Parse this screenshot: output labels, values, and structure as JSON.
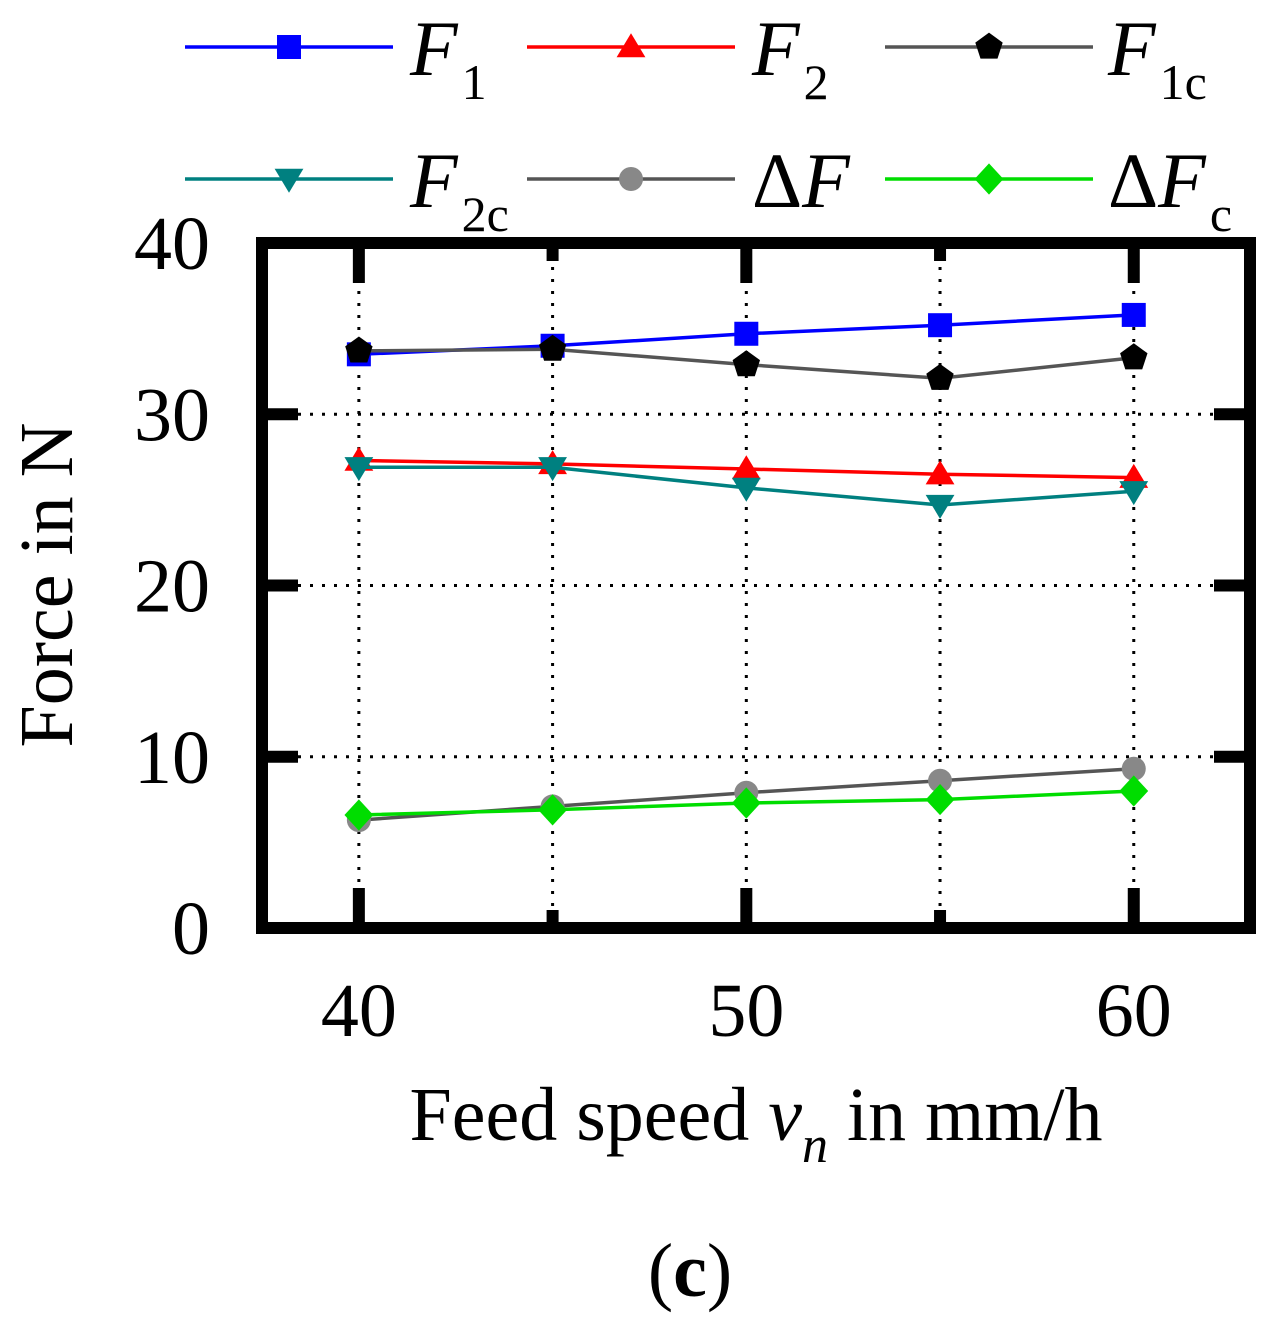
{
  "chart_data": {
    "type": "line",
    "title": "",
    "panel_label": {
      "open": "(",
      "letter": "c",
      "close": ")"
    },
    "xlabel": {
      "prefix": "Feed speed ",
      "var": "v",
      "sub": "n",
      "suffix": " in mm/h"
    },
    "ylabel": "Force in N",
    "x": [
      40,
      45,
      50,
      55,
      60
    ],
    "xlim": [
      37.5,
      63
    ],
    "ylim": [
      0,
      40
    ],
    "xticks": [
      "40",
      "50",
      "60"
    ],
    "xtick_values": [
      40,
      50,
      60
    ],
    "yticks": [
      "0",
      "10",
      "20",
      "30",
      "40"
    ],
    "ytick_values": [
      0,
      10,
      20,
      30,
      40
    ],
    "grid": true,
    "legend_position": "top",
    "series": [
      {
        "id": "F1",
        "name": "F1",
        "label": "F",
        "label_italic": true,
        "sub": "1",
        "color": "#0000ff",
        "marker": "square",
        "line_color": "#0000ff",
        "values": [
          33.5,
          34.0,
          34.7,
          35.2,
          35.8
        ]
      },
      {
        "id": "F2",
        "name": "F2",
        "label": "F",
        "label_italic": true,
        "sub": "2",
        "color": "#ff0000",
        "marker": "triangle-up",
        "line_color": "#ff0000",
        "values": [
          27.3,
          27.1,
          26.8,
          26.5,
          26.3
        ]
      },
      {
        "id": "F1c",
        "name": "F1c",
        "label": "F",
        "label_italic": true,
        "sub": "1c",
        "color": "#000000",
        "marker": "pentagon",
        "line_color": "#555555",
        "values": [
          33.7,
          33.8,
          32.9,
          32.1,
          33.3
        ]
      },
      {
        "id": "F2c",
        "name": "F2c",
        "label": "F",
        "label_italic": true,
        "sub": "2c",
        "color": "#008080",
        "marker": "triangle-down",
        "line_color": "#008080",
        "values": [
          26.9,
          26.9,
          25.7,
          24.7,
          25.5
        ]
      },
      {
        "id": "dF",
        "name": "ΔF",
        "label": "ΔF",
        "label_italic": true,
        "sub": "",
        "color": "#888888",
        "marker": "circle",
        "line_color": "#555555",
        "values": [
          6.3,
          7.1,
          7.9,
          8.6,
          9.3
        ]
      },
      {
        "id": "dFc",
        "name": "ΔFc",
        "label": "ΔF",
        "label_italic": true,
        "sub": "c",
        "color": "#00dd00",
        "marker": "diamond",
        "line_color": "#00dd00",
        "values": [
          6.6,
          6.9,
          7.3,
          7.5,
          8.0
        ]
      }
    ]
  }
}
